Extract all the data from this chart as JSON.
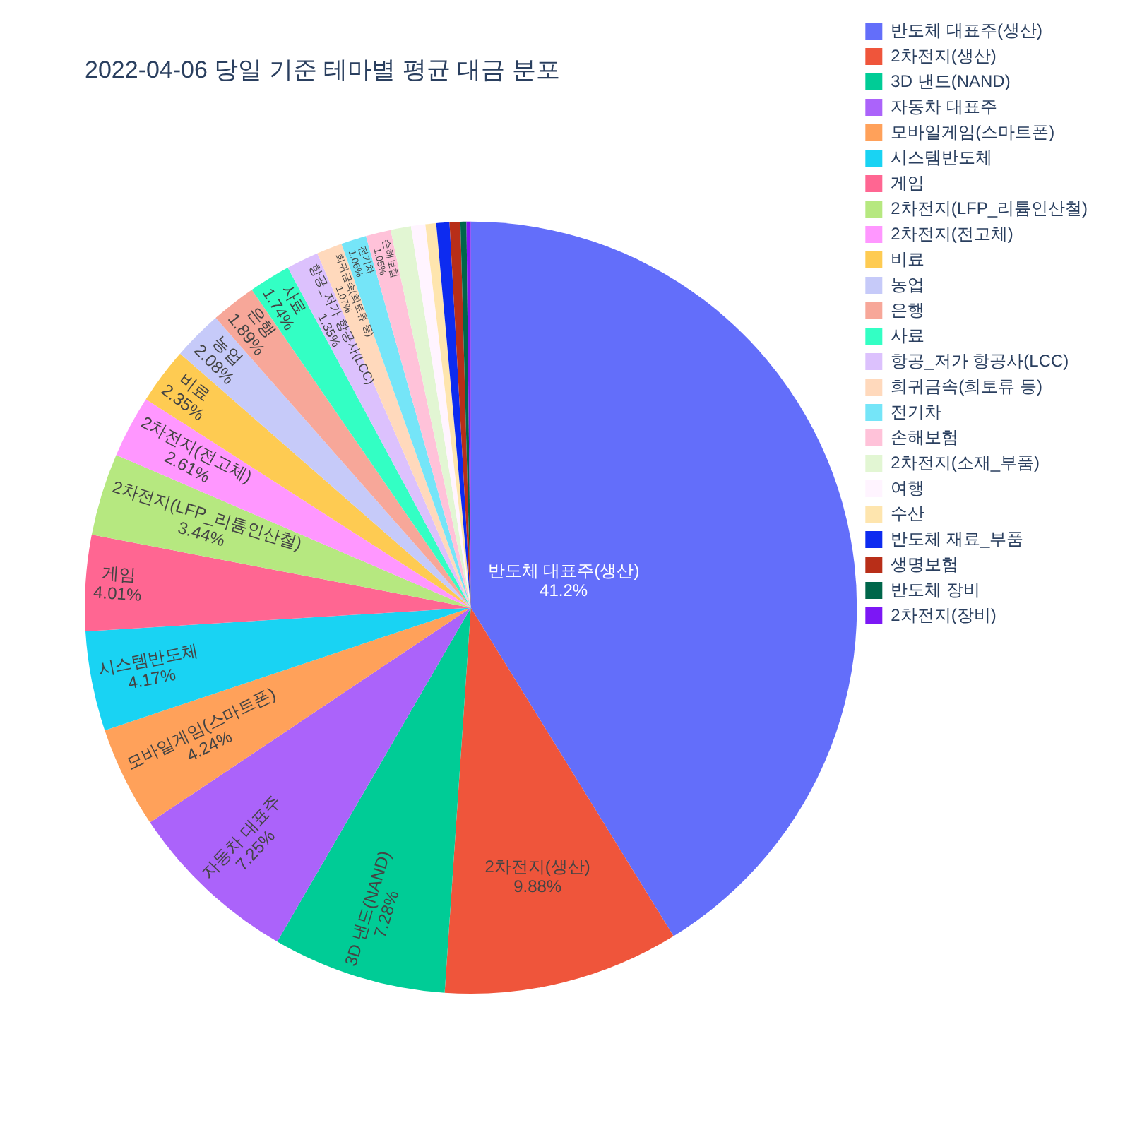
{
  "chart_data": {
    "type": "pie",
    "title": "2022-04-06 당일 기준 테마별 평균 대금 분포",
    "categories": [
      "반도체 대표주(생산)",
      "2차전지(생산)",
      "3D 낸드(NAND)",
      "자동차 대표주",
      "모바일게임(스마트폰)",
      "시스템반도체",
      "게임",
      "2차전지(LFP_리튬인산철)",
      "2차전지(전고체)",
      "비료",
      "농업",
      "은행",
      "사료",
      "항공_저가 항공사(LCC)",
      "희귀금속(희토류 등)",
      "전기차",
      "손해보험",
      "2차전지(소재_부품)",
      "여행",
      "수산",
      "반도체 재료_부품",
      "생명보험",
      "반도체 장비",
      "2차전지(장비)"
    ],
    "values": [
      41.2,
      9.88,
      7.28,
      7.25,
      4.24,
      4.17,
      4.01,
      3.44,
      2.61,
      2.35,
      2.08,
      1.89,
      1.74,
      1.35,
      1.07,
      1.06,
      1.05,
      0.85,
      0.6,
      0.45,
      0.55,
      0.45,
      0.25,
      0.18
    ],
    "colors": [
      "#636efa",
      "#ef553b",
      "#00cc96",
      "#ab63fa",
      "#ffa15a",
      "#19d3f3",
      "#ff6692",
      "#b6e880",
      "#ff97ff",
      "#fecb52",
      "#c6caf9",
      "#f7a799",
      "#33ffc4",
      "#dcc1fd",
      "#ffd9bc",
      "#75e5f8",
      "#ffc2d9",
      "#e2f6d3",
      "#fff4ff",
      "#fee5ae",
      "#0d2bf0",
      "#b82e18",
      "#00664a",
      "#7c17f5"
    ],
    "value_labels": [
      "41.2%",
      "9.88%",
      "7.28%",
      "7.25%",
      "4.24%",
      "4.17%",
      "4.01%",
      "3.44%",
      "2.61%",
      "2.35%",
      "2.08%",
      "1.89%",
      "1.74%",
      "1.35%",
      "1.07%",
      "1.06%",
      "1.05%",
      null,
      null,
      null,
      null,
      null,
      null,
      null
    ],
    "legend": "right"
  }
}
